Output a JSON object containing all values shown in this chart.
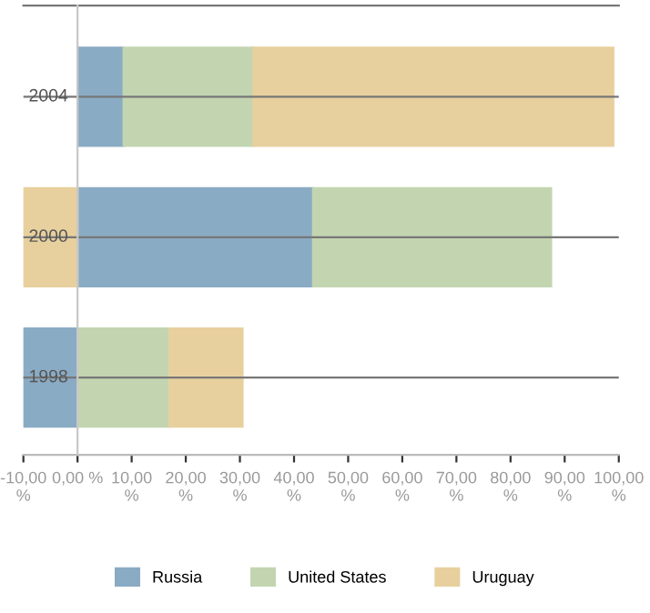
{
  "chart_data": {
    "type": "bar",
    "orientation": "horizontal",
    "stacked": true,
    "categories": [
      "2004",
      "2000",
      "1998"
    ],
    "series": [
      {
        "name": "Russia",
        "color": "#8aabc4",
        "values": [
          8.5,
          43.5,
          -10
        ]
      },
      {
        "name": "United States",
        "color": "#c2d5b0",
        "values": [
          24,
          44,
          17
        ]
      },
      {
        "name": "Uruguay",
        "color": "#e8d09e",
        "values": [
          66.5,
          -10,
          13.5
        ]
      }
    ],
    "xlim": [
      -10,
      100
    ],
    "xticks": [
      {
        "value": -10,
        "label": "-10,00 %"
      },
      {
        "value": 0,
        "label": "0,00 %"
      },
      {
        "value": 10,
        "label": "10,00 %"
      },
      {
        "value": 20,
        "label": "20,00 %"
      },
      {
        "value": 30,
        "label": "30,00 %"
      },
      {
        "value": 40,
        "label": "40,00 %"
      },
      {
        "value": 50,
        "label": "50,00 %"
      },
      {
        "value": 60,
        "label": "60,00 %"
      },
      {
        "value": 70,
        "label": "70,00 %"
      },
      {
        "value": 80,
        "label": "80,00 %"
      },
      {
        "value": 90,
        "label": "90,00 %"
      },
      {
        "value": 100,
        "label": "100,00 %"
      }
    ],
    "grid": "y",
    "legend": "bottom"
  }
}
